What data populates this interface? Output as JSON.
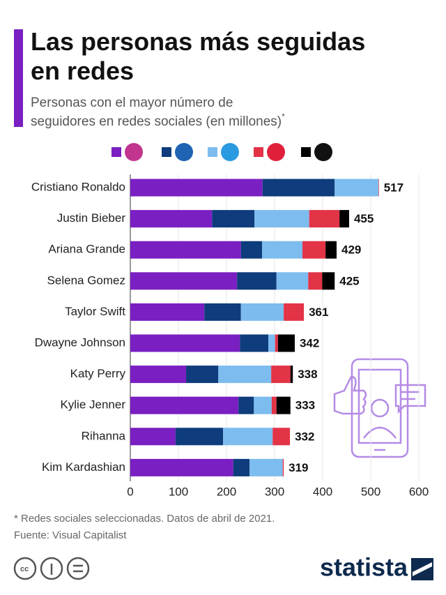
{
  "chart_data": {
    "type": "stacked_barh",
    "title": "Las personas más seguidas en redes",
    "subtitle": "Personas con el mayor número de seguidores en redes sociales (en millones)",
    "subtitle_mark": "*",
    "categories": [
      "Cristiano Ronaldo",
      "Justin Bieber",
      "Ariana Grande",
      "Selena Gomez",
      "Taylor Swift",
      "Dwayne Johnson",
      "Katy Perry",
      "Kylie Jenner",
      "Rihanna",
      "Kim Kardashian"
    ],
    "series": [
      {
        "color": "#7a1fc2",
        "values": [
          275,
          170,
          230,
          222,
          154,
          228,
          116,
          225,
          94,
          214
        ]
      },
      {
        "color": "#0e3c7c",
        "values": [
          150,
          88,
          44,
          82,
          76,
          59,
          67,
          32,
          99,
          34
        ]
      },
      {
        "color": "#7dbcee",
        "values": [
          91,
          114,
          84,
          66,
          89,
          14,
          110,
          37,
          103,
          69
        ]
      },
      {
        "color": "#e23347",
        "values": [
          1,
          63,
          48,
          29,
          42,
          6,
          40,
          10,
          36,
          2
        ]
      },
      {
        "color": "#000000",
        "values": [
          0,
          20,
          23,
          26,
          0,
          35,
          5,
          29,
          0,
          0
        ]
      }
    ],
    "totals": [
      517,
      455,
      429,
      425,
      361,
      342,
      338,
      333,
      332,
      319
    ],
    "xlim": [
      0,
      600
    ],
    "xticks": [
      0,
      100,
      200,
      300,
      400,
      500,
      600
    ],
    "grid": true,
    "note": "* Redes sociales seleccionadas. Datos de abril de 2021.",
    "source": "Fuente: Visual Capitalist",
    "brand": "statista"
  }
}
